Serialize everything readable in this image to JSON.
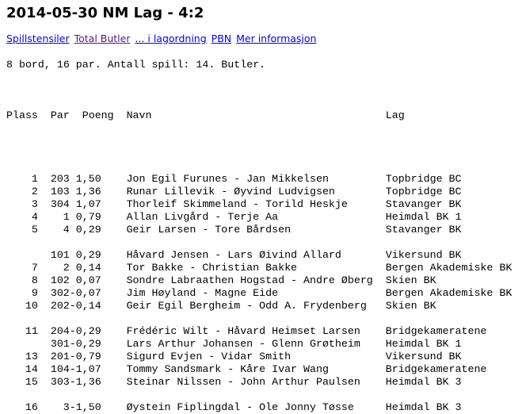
{
  "title": "2014-05-30  NM Lag - 4:2",
  "links": [
    {
      "label": "Spillstensiler",
      "visited": false
    },
    {
      "label": "Total Butler",
      "visited": true
    },
    {
      "label": "... i lagordning",
      "visited": false
    },
    {
      "label": "PBN",
      "visited": false
    },
    {
      "label": "Mer informasjon",
      "visited": false
    }
  ],
  "info": "8 bord, 16 par. Antall spill: 14. Butler.",
  "headers": {
    "plass": "Plass",
    "par": "Par",
    "poeng": "Poeng",
    "navn": "Navn",
    "lag": "Lag"
  },
  "groups": [
    [
      {
        "plass": "1",
        "par": "203",
        "poeng": "1,50",
        "navn": "Jon Egil Furunes - Jan Mikkelsen",
        "lag": "Topbridge BC"
      },
      {
        "plass": "2",
        "par": "103",
        "poeng": "1,36",
        "navn": "Runar Lillevik - Øyvind Ludvigsen",
        "lag": "Topbridge BC"
      },
      {
        "plass": "3",
        "par": "304",
        "poeng": "1,07",
        "navn": "Thorleif Skimmeland - Torild Heskje",
        "lag": "Stavanger BK"
      },
      {
        "plass": "4",
        "par": "1",
        "poeng": "0,79",
        "navn": "Allan Livgård - Terje Aa",
        "lag": "Heimdal BK 1"
      },
      {
        "plass": "5",
        "par": "4",
        "poeng": "0,29",
        "navn": "Geir Larsen - Tore Bårdsen",
        "lag": "Stavanger BK"
      }
    ],
    [
      {
        "plass": "",
        "par": "101",
        "poeng": "0,29",
        "navn": "Håvard Jensen - Lars Øivind Allard",
        "lag": "Vikersund BK"
      },
      {
        "plass": "7",
        "par": "2",
        "poeng": "0,14",
        "navn": "Tor Bakke - Christian Bakke",
        "lag": "Bergen Akademiske BK"
      },
      {
        "plass": "8",
        "par": "102",
        "poeng": "0,07",
        "navn": "Sondre Labraathen Hogstad - Andre Øberg",
        "lag": "Skien BK"
      },
      {
        "plass": "9",
        "par": "302",
        "poeng": "-0,07",
        "navn": "Jim Høyland - Magne Eide",
        "lag": "Bergen Akademiske BK"
      },
      {
        "plass": "10",
        "par": "202",
        "poeng": "-0,14",
        "navn": "Geir Egil Bergheim - Odd A. Frydenberg",
        "lag": "Skien BK"
      }
    ],
    [
      {
        "plass": "11",
        "par": "204",
        "poeng": "-0,29",
        "navn": "Frédéric Wilt - Håvard Heimset Larsen",
        "lag": "Bridgekameratene"
      },
      {
        "plass": "",
        "par": "301",
        "poeng": "-0,29",
        "navn": "Lars Arthur Johansen - Glenn Grøtheim",
        "lag": "Heimdal BK 1"
      },
      {
        "plass": "13",
        "par": "201",
        "poeng": "-0,79",
        "navn": "Sigurd Evjen - Vidar Smith",
        "lag": "Vikersund BK"
      },
      {
        "plass": "14",
        "par": "104",
        "poeng": "-1,07",
        "navn": "Tommy Sandsmark - Kåre Ivar Wang",
        "lag": "Bridgekameratene"
      },
      {
        "plass": "15",
        "par": "303",
        "poeng": "-1,36",
        "navn": "Steinar Nilssen - John Arthur Paulsen",
        "lag": "Heimdal BK 3"
      }
    ],
    [
      {
        "plass": "16",
        "par": "3",
        "poeng": "-1,50",
        "navn": "Øystein Fiplingdal - Ole Jonny Tøsse",
        "lag": "Heimdal BK 3"
      }
    ]
  ]
}
